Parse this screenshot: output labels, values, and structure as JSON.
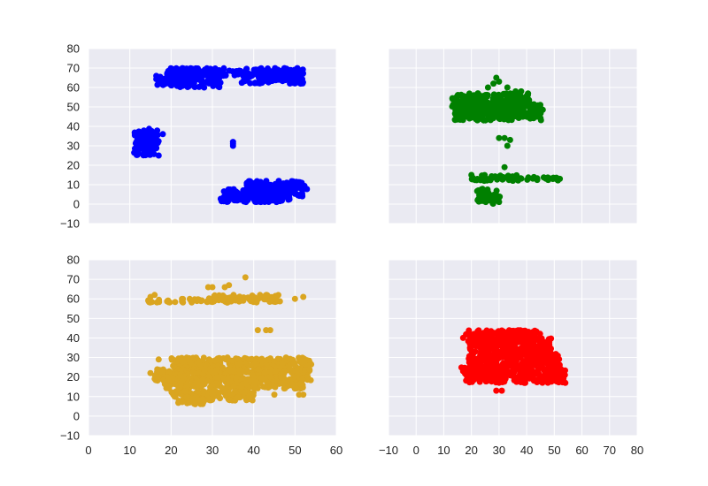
{
  "chart_data": [
    {
      "type": "scatter",
      "title": "",
      "xlabel": "",
      "ylabel": "",
      "xlim": [
        0,
        60
      ],
      "ylim": [
        -10,
        80
      ],
      "xticks": [
        "0",
        "10",
        "20",
        "30",
        "40",
        "50",
        "60"
      ],
      "xticks_visible": false,
      "yticks": [
        "80",
        "70",
        "60",
        "50",
        "40",
        "30",
        "20",
        "10",
        "0",
        "−10"
      ],
      "yticks_visible": true,
      "grid": true,
      "series": [
        {
          "color": "#0000ff",
          "blobs": [
            {
              "x": [
                16,
                20
              ],
              "y": [
                61,
                66
              ]
            },
            {
              "x": [
                19,
                32
              ],
              "y": [
                60,
                70
              ]
            },
            {
              "x": [
                19,
                37
              ],
              "y": [
                66,
                70
              ]
            },
            {
              "x": [
                37,
                52
              ],
              "y": [
                62,
                70
              ]
            },
            {
              "x": [
                42,
                52
              ],
              "y": [
                63,
                68
              ]
            },
            {
              "x": [
                11,
                17
              ],
              "y": [
                25,
                38
              ]
            },
            {
              "x": [
                14,
                16
              ],
              "y": [
                28,
                39
              ]
            },
            {
              "x": [
                32,
                36
              ],
              "y": [
                1,
                7
              ]
            },
            {
              "x": [
                33,
                49
              ],
              "y": [
                1,
                8
              ]
            },
            {
              "x": [
                38,
                52
              ],
              "y": [
                4,
                12
              ]
            },
            {
              "x": [
                49,
                53
              ],
              "y": [
                7,
                10
              ]
            }
          ],
          "points": [
            [
              28,
              60
            ],
            [
              35,
              30
            ],
            [
              35,
              32
            ],
            [
              35,
              31
            ],
            [
              12,
              33
            ],
            [
              17,
              25
            ],
            [
              18,
              36
            ]
          ]
        }
      ]
    },
    {
      "type": "scatter",
      "title": "",
      "xlabel": "",
      "ylabel": "",
      "xlim": [
        -10,
        80
      ],
      "ylim": [
        -10,
        80
      ],
      "xticks": [
        "−10",
        "0",
        "10",
        "20",
        "30",
        "40",
        "50",
        "60",
        "70",
        "80"
      ],
      "xticks_visible": false,
      "yticks": [
        "80",
        "70",
        "60",
        "50",
        "40",
        "30",
        "20",
        "10",
        "0",
        "−10"
      ],
      "yticks_visible": false,
      "grid": true,
      "series": [
        {
          "color": "#008000",
          "blobs": [
            {
              "x": [
                13,
                41
              ],
              "y": [
                50,
                57
              ]
            },
            {
              "x": [
                14,
                46
              ],
              "y": [
                43,
                52
              ]
            },
            {
              "x": [
                14,
                24
              ],
              "y": [
                45,
                56
              ]
            },
            {
              "x": [
                20,
                38
              ],
              "y": [
                12,
                15
              ]
            },
            {
              "x": [
                38,
                52
              ],
              "y": [
                12,
                14
              ]
            },
            {
              "x": [
                22,
                30
              ],
              "y": [
                1,
                8
              ]
            },
            {
              "x": [
                26,
                31
              ],
              "y": [
                0,
                5
              ]
            }
          ],
          "points": [
            [
              26,
              60
            ],
            [
              28,
              62
            ],
            [
              29,
              65
            ],
            [
              30,
              63
            ],
            [
              33,
              60
            ],
            [
              36,
              58
            ],
            [
              38,
              58
            ],
            [
              30,
              34
            ],
            [
              32,
              34
            ],
            [
              34,
              33
            ],
            [
              33,
              30
            ],
            [
              32,
              19
            ],
            [
              20,
              15
            ],
            [
              52,
              13
            ]
          ]
        }
      ]
    },
    {
      "type": "scatter",
      "title": "",
      "xlabel": "",
      "ylabel": "",
      "xlim": [
        0,
        60
      ],
      "ylim": [
        -10,
        80
      ],
      "xticks": [
        "0",
        "10",
        "20",
        "30",
        "40",
        "50",
        "60"
      ],
      "xticks_visible": true,
      "yticks": [
        "80",
        "70",
        "60",
        "50",
        "40",
        "30",
        "20",
        "10",
        "0",
        "−10"
      ],
      "yticks_visible": true,
      "grid": true,
      "series": [
        {
          "color": "#daa520",
          "blobs": [
            {
              "x": [
                14,
                47
              ],
              "y": [
                58,
                60
              ]
            },
            {
              "x": [
                29,
                46
              ],
              "y": [
                59,
                62
              ]
            },
            {
              "x": [
                20,
                54
              ],
              "y": [
                23,
                30
              ]
            },
            {
              "x": [
                16,
                54
              ],
              "y": [
                18,
                24
              ]
            },
            {
              "x": [
                18,
                52
              ],
              "y": [
                14,
                20
              ]
            },
            {
              "x": [
                20,
                40
              ],
              "y": [
                8,
                13
              ]
            },
            {
              "x": [
                21,
                28
              ],
              "y": [
                6,
                10
              ]
            }
          ],
          "points": [
            [
              15,
              61
            ],
            [
              16,
              62
            ],
            [
              29,
              66
            ],
            [
              30,
              66
            ],
            [
              33,
              66
            ],
            [
              34,
              67
            ],
            [
              38,
              71
            ],
            [
              50,
              60
            ],
            [
              52,
              61
            ],
            [
              41,
              44
            ],
            [
              43,
              44
            ],
            [
              44,
              44
            ],
            [
              17,
              29
            ],
            [
              15,
              22
            ],
            [
              45,
              11
            ],
            [
              51,
              11
            ],
            [
              52,
              11
            ]
          ]
        }
      ]
    },
    {
      "type": "scatter",
      "title": "",
      "xlabel": "",
      "ylabel": "",
      "xlim": [
        -10,
        80
      ],
      "ylim": [
        -10,
        80
      ],
      "xticks": [
        "−10",
        "0",
        "10",
        "20",
        "30",
        "40",
        "50",
        "60",
        "70",
        "80"
      ],
      "xticks_visible": true,
      "yticks": [
        "80",
        "70",
        "60",
        "50",
        "40",
        "30",
        "20",
        "10",
        "0",
        "−10"
      ],
      "yticks_visible": false,
      "grid": true,
      "series": [
        {
          "color": "#ff0000",
          "blobs": [
            {
              "x": [
                18,
                45
              ],
              "y": [
                38,
                44
              ]
            },
            {
              "x": [
                19,
                49
              ],
              "y": [
                30,
                40
              ]
            },
            {
              "x": [
                19,
                52
              ],
              "y": [
                25,
                32
              ]
            },
            {
              "x": [
                16,
                54
              ],
              "y": [
                21,
                25
              ]
            },
            {
              "x": [
                18,
                54
              ],
              "y": [
                17,
                21
              ]
            }
          ],
          "points": [
            [
              17,
              40
            ],
            [
              17,
              23
            ],
            [
              29,
              13
            ],
            [
              31,
              13
            ],
            [
              54,
              17
            ]
          ]
        }
      ]
    }
  ]
}
